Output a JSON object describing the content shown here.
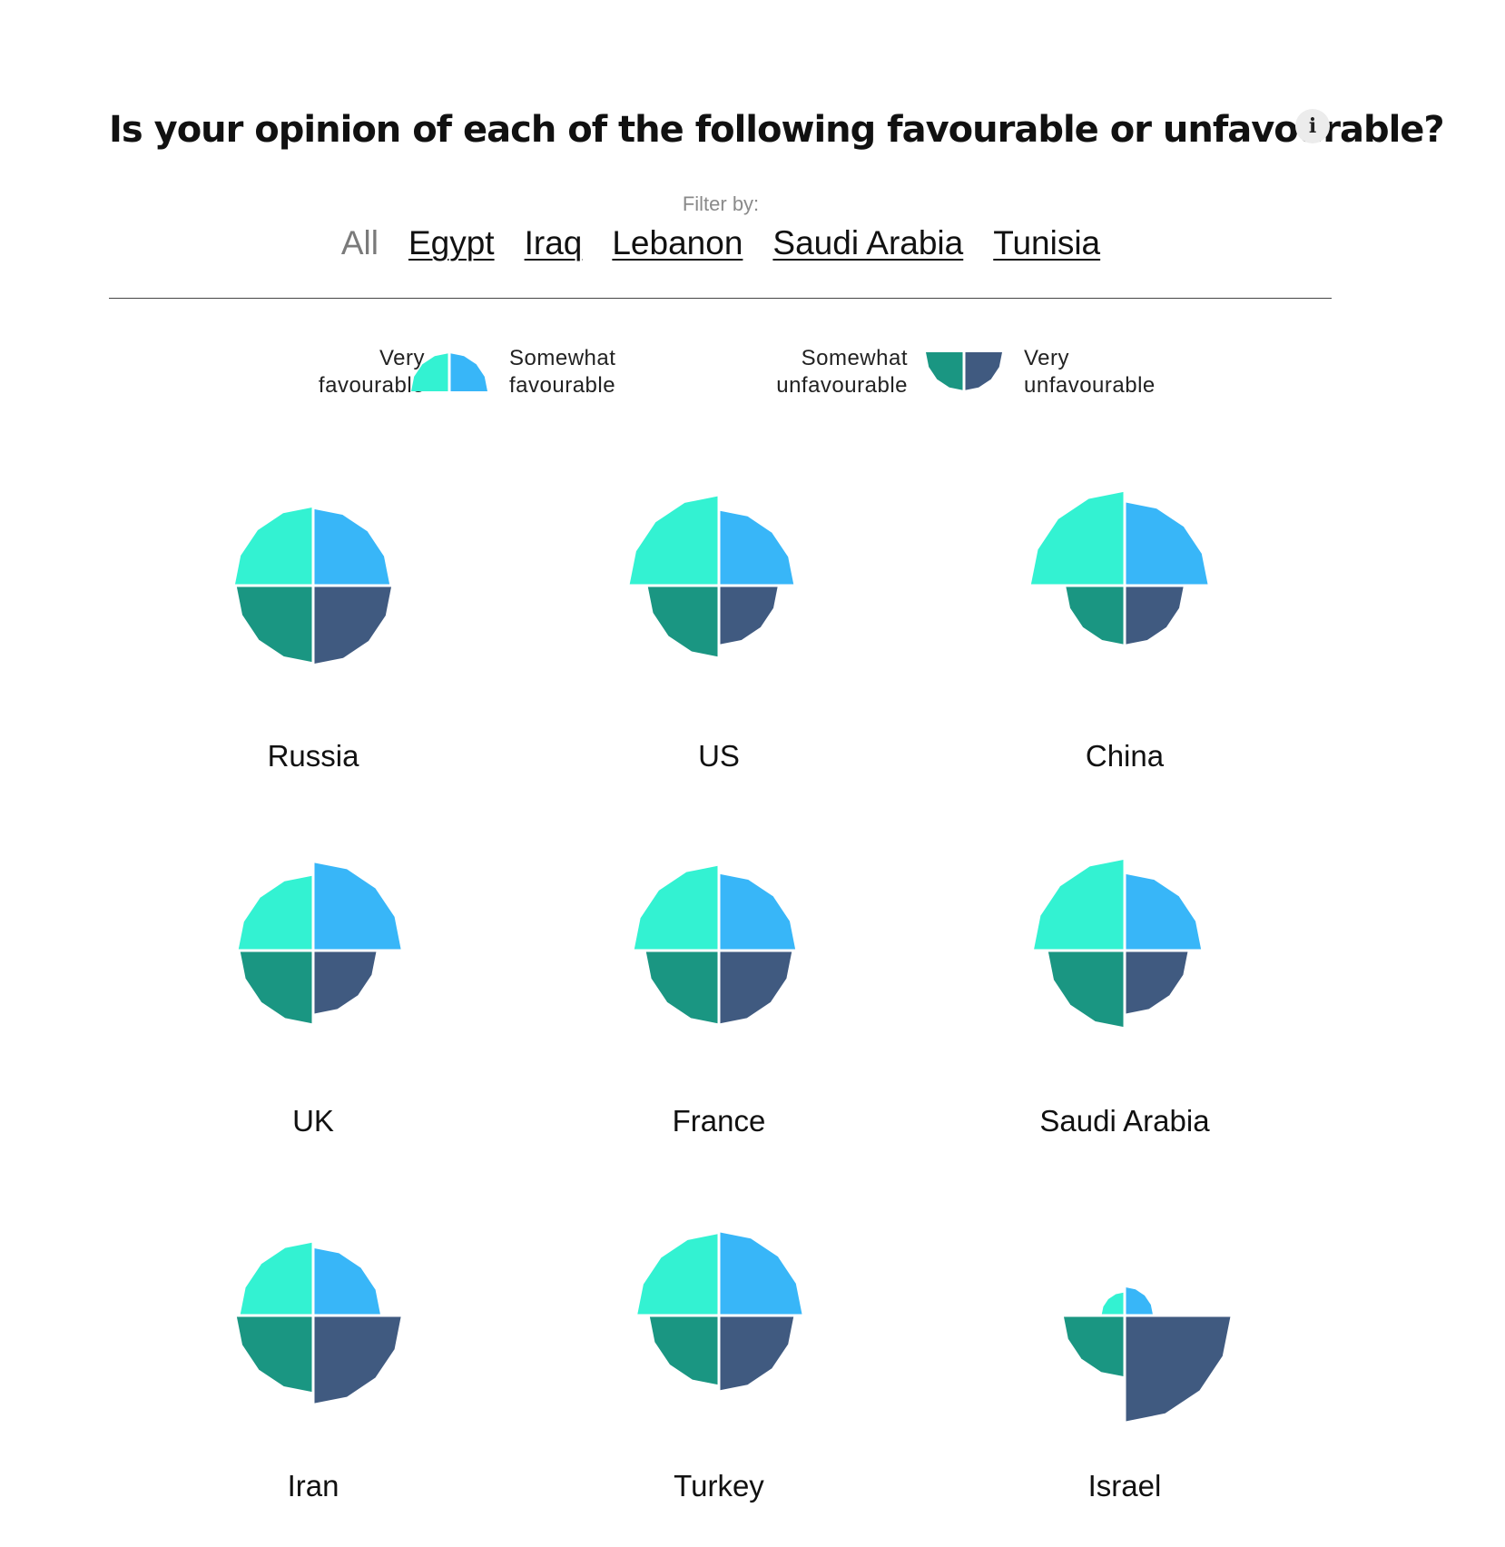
{
  "title": "Is your opinion of each of the following favourable or unfavourable?",
  "info_icon": "i",
  "filter": {
    "label": "Filter by:",
    "options": [
      "All",
      "Egypt",
      "Iraq",
      "Lebanon",
      "Saudi Arabia",
      "Tunisia"
    ],
    "selected": "All"
  },
  "legend": {
    "very_favourable": "Very\nfavourable",
    "somewhat_favourable": "Somewhat\nfavourable",
    "somewhat_unfavourable": "Somewhat\nunfavourable",
    "very_unfavourable": "Very\nunfavourable"
  },
  "colors": {
    "very_favourable": "#33f2d2",
    "somewhat_favourable": "#38b6f8",
    "somewhat_unfavourable": "#1a9682",
    "very_unfavourable": "#405a80"
  },
  "chart_data": {
    "type": "polar-area",
    "categories": [
      "Russia",
      "US",
      "China",
      "UK",
      "France",
      "Saudi Arabia",
      "Iran",
      "Turkey",
      "Israel"
    ],
    "series": [
      {
        "name": "Very favourable",
        "values": [
          23,
          30,
          33,
          21,
          27,
          31,
          20,
          25,
          2
        ]
      },
      {
        "name": "Somewhat favourable",
        "values": [
          22,
          21,
          26,
          29,
          22,
          22,
          17,
          26,
          3
        ]
      },
      {
        "name": "Somewhat unfavourable",
        "values": [
          22,
          19,
          13,
          20,
          20,
          22,
          22,
          18,
          14
        ]
      },
      {
        "name": "Very unfavourable",
        "values": [
          23,
          13,
          13,
          15,
          20,
          15,
          29,
          21,
          42
        ]
      }
    ]
  }
}
